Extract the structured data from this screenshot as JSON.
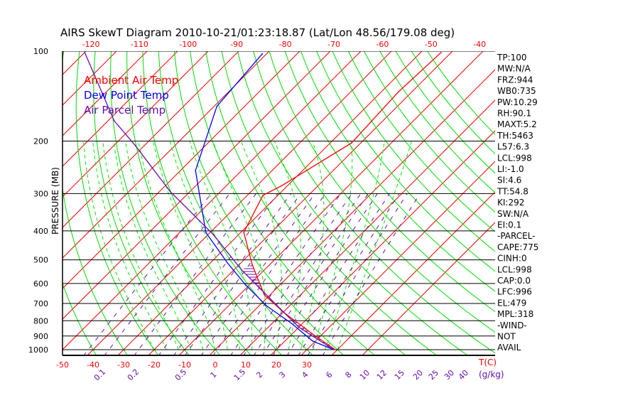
{
  "chart_data": {
    "type": "line",
    "title": "AIRS SkewT Diagram 2010-10-21/01:23:18.87 (Lat/Lon 48.56/179.08 deg)",
    "ylabel": "PRESSURE (MB)",
    "xlabel": "T(C)",
    "mixing_ratio_unit": "(g/kg)",
    "pressure_ticks": [
      100,
      200,
      300,
      400,
      500,
      600,
      700,
      800,
      900,
      1000
    ],
    "top_temp_ticks": [
      -120,
      -110,
      -100,
      -90,
      -80,
      -70,
      -60,
      -50,
      -40
    ],
    "bottom_temp_ticks": [
      -50,
      -40,
      -30,
      -20,
      -10,
      0,
      10,
      20,
      30
    ],
    "mixing_ratio_ticks": [
      "0.1",
      "0.2",
      "0.5",
      "1",
      "1.5",
      "2",
      "3",
      "4",
      "6",
      "8",
      "10",
      "12",
      "15",
      "20",
      "25",
      "30",
      "40"
    ],
    "legend": [
      {
        "name": "Ambient Air Temp",
        "color": "#ff0000"
      },
      {
        "name": "Dew Point Temp",
        "color": "#0000ff"
      },
      {
        "name": "Air Parcel Temp",
        "color": "#6a0dad"
      }
    ],
    "series": [
      {
        "name": "Ambient Air Temp",
        "color": "#ff0000",
        "points": [
          [
            1000,
            39.3
          ],
          [
            886,
            26.7
          ],
          [
            752,
            10.5
          ],
          [
            655,
            -1.9
          ],
          [
            518,
            -15.8
          ],
          [
            405,
            -29
          ],
          [
            304,
            -34.9
          ],
          [
            283,
            -32
          ],
          [
            203,
            -23
          ],
          [
            137,
            -24.4
          ],
          [
            101,
            -23.3
          ]
        ]
      },
      {
        "name": "Dew Point Temp",
        "color": "#0000ff",
        "points": [
          [
            1000,
            38.8
          ],
          [
            936,
            29.1
          ],
          [
            816,
            16.3
          ],
          [
            712,
            2.3
          ],
          [
            604,
            -11.6
          ],
          [
            512,
            -24.4
          ],
          [
            405,
            -41.4
          ],
          [
            251,
            -65.1
          ],
          [
            153,
            -79.1
          ],
          [
            102,
            -81.4
          ]
        ]
      },
      {
        "name": "Air Parcel Temp",
        "color": "#6a0dad",
        "points": [
          [
            1000,
            38.8
          ],
          [
            839,
            19.8
          ],
          [
            674,
            1.2
          ],
          [
            541,
            -17.4
          ],
          [
            411,
            -38.4
          ],
          [
            296,
            -66.3
          ],
          [
            207,
            -93
          ],
          [
            171,
            -108
          ],
          [
            101,
            -140
          ]
        ]
      }
    ],
    "ylim": [
      1000,
      100
    ],
    "xlim": [
      -50,
      35
    ]
  },
  "indices": [
    "TP:100",
    "MW:N/A",
    "FRZ:944",
    "WB0:735",
    "PW:10.29",
    "RH:90.1",
    "MAXT:5.2",
    "TH:5463",
    "L57:6.3",
    "LCL:998",
    "LI:-1.0",
    "SI:4.6",
    "TT:54.8",
    "KI:292",
    "SW:N/A",
    "EI:0.1",
    "-PARCEL-",
    "CAPE:775",
    "CINH:0",
    "LCL:998",
    "CAP:0.0",
    "LFC:996",
    "EL:479",
    "MPL:318",
    "-WIND-",
    "NOT",
    "AVAIL"
  ],
  "colors": {
    "isotherm": "#ff0000",
    "dry_adiabat": "#00dd00",
    "moist_adiabat": "#00ee00",
    "mixing_ratio": "#6a0dad",
    "isobar": "#000000",
    "hatch": "#6a0dad"
  }
}
